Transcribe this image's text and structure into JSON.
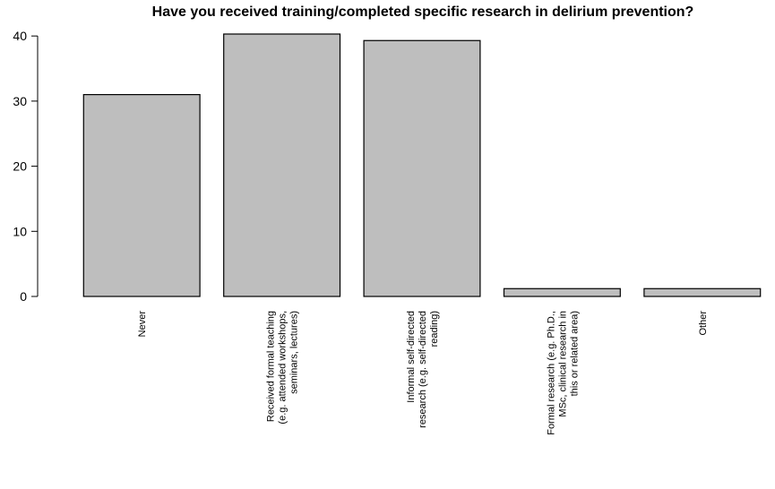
{
  "chart_data": {
    "type": "bar",
    "title": "Have you received training/completed specific research in delirium prevention?",
    "xlabel": "",
    "ylabel": "",
    "categories": [
      [
        "Never"
      ],
      [
        "Received formal teaching",
        "(e.g. attended workshops,",
        "seminars, lectures)"
      ],
      [
        "Informal self-directed",
        "research (e.g. self-directed",
        "reading)"
      ],
      [
        "Formal research (e.g. Ph.D.,",
        "MSc, clinical research in",
        "this or related area)"
      ],
      [
        "Other"
      ]
    ],
    "values": [
      31,
      40.3,
      39.3,
      1.2,
      1.2
    ],
    "yticks": [
      0,
      10,
      20,
      30,
      40
    ],
    "ylim": [
      0,
      40.3
    ],
    "grid": false,
    "bar_color": "#bebebe",
    "edge_color": "#000000"
  }
}
